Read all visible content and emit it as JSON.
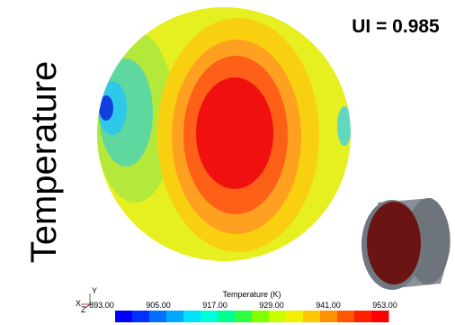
{
  "side_label": "Temperature",
  "annotation": "UI = 0.985",
  "colorbar": {
    "title": "Temperature (K)",
    "labels": [
      "893.00",
      "905.00",
      "917.00",
      "929.00",
      "941.00",
      "953.00"
    ]
  },
  "axis_triad": {
    "y": "Y",
    "x": "X",
    "z": "Z"
  }
}
